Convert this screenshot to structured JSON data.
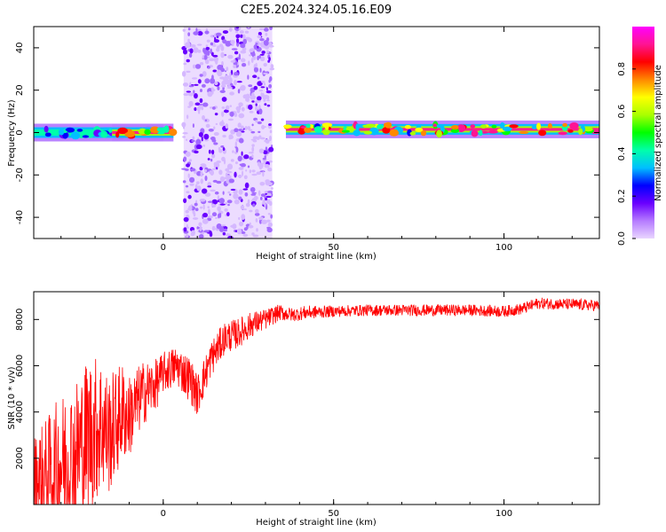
{
  "title": "C2E5.2024.324.05.16.E09",
  "chart_data": [
    {
      "type": "heatmap",
      "xlabel": "Height of straight line (km)",
      "ylabel": "Frequency (Hz)",
      "xlim": [
        -38,
        128
      ],
      "ylim": [
        -50,
        50
      ],
      "xticks": [
        0,
        50,
        100
      ],
      "yticks": [
        -40,
        -20,
        0,
        20,
        40
      ],
      "colorbar": {
        "label": "Normalized spectral amplitude",
        "range": [
          0.0,
          1.0
        ],
        "ticks": [
          0.0,
          0.2,
          0.4,
          0.6,
          0.8
        ],
        "tick_labels": [
          "0.0",
          "0.2",
          "0.4",
          "0.6",
          "0.8"
        ],
        "colors": [
          "#e9d5ff",
          "#b57bff",
          "#6a00ff",
          "#0000ff",
          "#00bfff",
          "#00ffaa",
          "#00ff00",
          "#aaff00",
          "#ffff00",
          "#ff8800",
          "#ff0000",
          "#ff1493",
          "#ff00ff"
        ]
      },
      "features": [
        {
          "kind": "carrier",
          "x": [
            -38,
            0
          ],
          "freq": 0,
          "amplitude": 0.45
        },
        {
          "kind": "carrier",
          "x": [
            -15,
            3
          ],
          "freq": 0,
          "amplitude": 0.9
        },
        {
          "kind": "scatter_noise",
          "x": [
            6,
            32
          ],
          "freq": [
            -50,
            50
          ],
          "amplitude": 0.2
        },
        {
          "kind": "carrier",
          "x": [
            36,
            128
          ],
          "freq": 1.5,
          "amplitude": 0.95
        }
      ]
    },
    {
      "type": "line",
      "xlabel": "Height of straight line (km)",
      "ylabel": "SNR (10 * v/v)",
      "xlim": [
        -38,
        128
      ],
      "ylim": [
        0,
        9200
      ],
      "xticks": [
        0,
        50,
        100
      ],
      "yticks": [
        2000,
        4000,
        6000,
        8000
      ],
      "series": [
        {
          "color": "#ff0000",
          "x": [
            -38,
            -34,
            -30,
            -26,
            -22,
            -18,
            -16,
            -12,
            -10,
            -6,
            -2,
            0,
            4,
            8,
            10,
            14,
            18,
            22,
            26,
            30,
            34,
            38,
            42,
            50,
            60,
            70,
            80,
            90,
            100,
            105,
            110,
            120,
            128
          ],
          "values": [
            1000,
            1300,
            1800,
            2200,
            3000,
            3500,
            3000,
            4000,
            3800,
            4800,
            5200,
            5700,
            6000,
            5400,
            4700,
            6300,
            7200,
            7400,
            7800,
            8000,
            8300,
            8200,
            8300,
            8350,
            8400,
            8400,
            8400,
            8400,
            8350,
            8450,
            8700,
            8650,
            8600
          ],
          "noise": [
            2000,
            2500,
            3000,
            3200,
            3500,
            3000,
            2600,
            2200,
            1800,
            1400,
            1100,
            900,
            900,
            1000,
            900,
            800,
            700,
            650,
            550,
            450,
            350,
            300,
            300,
            250,
            250,
            250,
            250,
            250,
            250,
            250,
            250,
            250,
            250
          ]
        }
      ]
    }
  ]
}
